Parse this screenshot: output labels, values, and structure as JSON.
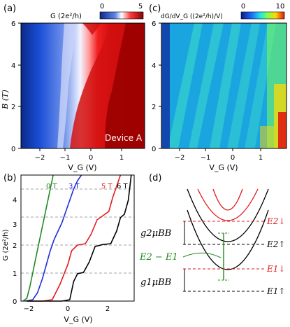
{
  "figure": {
    "panels": {
      "a": {
        "label": "(a)",
        "xlabel": "V_G (V)",
        "ylabel": "B (T)",
        "xticks": [
          "−2",
          "−1",
          "0",
          "1"
        ],
        "yticks": [
          "0",
          "2",
          "4",
          "6"
        ],
        "colorbar_label": "G (2e²/h)",
        "colorbar_ticks": [
          "0",
          "5"
        ],
        "device_label": "Device A",
        "colors": {
          "low": "#0b2a8a",
          "mid": "#ffffff",
          "high": "#8b0000"
        }
      },
      "b": {
        "label": "(b)",
        "xlabel": "V_G (V)",
        "ylabel": "G (2e²/h)",
        "xticks": [
          "−2",
          "0",
          "2"
        ],
        "yticks": [
          "0",
          "1",
          "2",
          "3",
          "4"
        ],
        "legend": [
          {
            "text": "0 T",
            "color": "#1f8a1f"
          },
          {
            "text": "3 T",
            "color": "#1f2fd6"
          },
          {
            "text": "5 T",
            "color": "#e31a1c"
          },
          {
            "text": "6 T",
            "color": "#000000"
          }
        ]
      },
      "c": {
        "label": "(c)",
        "xlabel": "V_G (V)",
        "xticks": [
          "−2",
          "−1",
          "0",
          "1"
        ],
        "yticks": [
          "0",
          "2",
          "4",
          "6"
        ],
        "colorbar_label": "dG/dV_G ((2e²/h)/V)",
        "colorbar_ticks": [
          "0",
          "10"
        ]
      },
      "d": {
        "label": "(d)",
        "level_labels": [
          "E2↓",
          "E2↑",
          "E1↓",
          "E1↑"
        ],
        "split_labels": [
          "g2μBB",
          "g1μBB"
        ],
        "gap_label": "E2 − E1"
      }
    },
    "chart_data": [
      {
        "type": "line",
        "panel": "b",
        "xlabel": "V_G (V)",
        "ylabel": "G (2e²/h)",
        "xlim": [
          -2.6,
          3.2
        ],
        "ylim": [
          0,
          4.5
        ],
        "series": [
          {
            "name": "0 T",
            "color": "#1f8a1f",
            "x": [
              -2.5,
              -2.3,
              -2.15,
              -2.0,
              -1.85,
              -1.7,
              -1.55,
              -1.4,
              -1.25,
              -1.1,
              -0.95
            ],
            "y": [
              0.0,
              0.1,
              0.5,
              1.0,
              1.5,
              2.0,
              2.5,
              3.0,
              3.5,
              4.0,
              4.5
            ]
          },
          {
            "name": "3 T",
            "color": "#1f2fd6",
            "x": [
              -2.4,
              -2.0,
              -1.75,
              -1.5,
              -1.3,
              -1.1,
              -0.9,
              -0.7,
              -0.5,
              -0.3,
              -0.1,
              0.1,
              0.3,
              0.5
            ],
            "y": [
              0.0,
              0.05,
              0.3,
              0.8,
              1.3,
              1.8,
              2.2,
              2.5,
              2.8,
              3.2,
              3.6,
              4.0,
              4.3,
              4.5
            ]
          },
          {
            "name": "5 T",
            "color": "#e31a1c",
            "x": [
              -2.3,
              -1.5,
              -1.0,
              -0.6,
              -0.4,
              -0.2,
              0.0,
              0.3,
              0.7,
              1.0,
              1.3,
              1.6,
              1.9,
              2.1,
              2.3,
              2.5
            ],
            "y": [
              0.0,
              0.0,
              0.05,
              0.6,
              0.95,
              1.3,
              1.8,
              2.0,
              2.05,
              2.4,
              2.9,
              3.05,
              3.2,
              3.7,
              4.1,
              4.5
            ]
          },
          {
            "name": "6 T",
            "color": "#000000",
            "x": [
              -2.3,
              -0.5,
              -0.1,
              0.1,
              0.3,
              0.6,
              0.9,
              1.2,
              1.6,
              2.0,
              2.3,
              2.5,
              2.7,
              2.9,
              3.05
            ],
            "y": [
              0.0,
              0.0,
              0.05,
              0.7,
              0.98,
              1.02,
              1.4,
              1.95,
              2.02,
              2.05,
              2.5,
              2.98,
              3.1,
              3.6,
              4.5
            ]
          }
        ]
      }
    ]
  }
}
